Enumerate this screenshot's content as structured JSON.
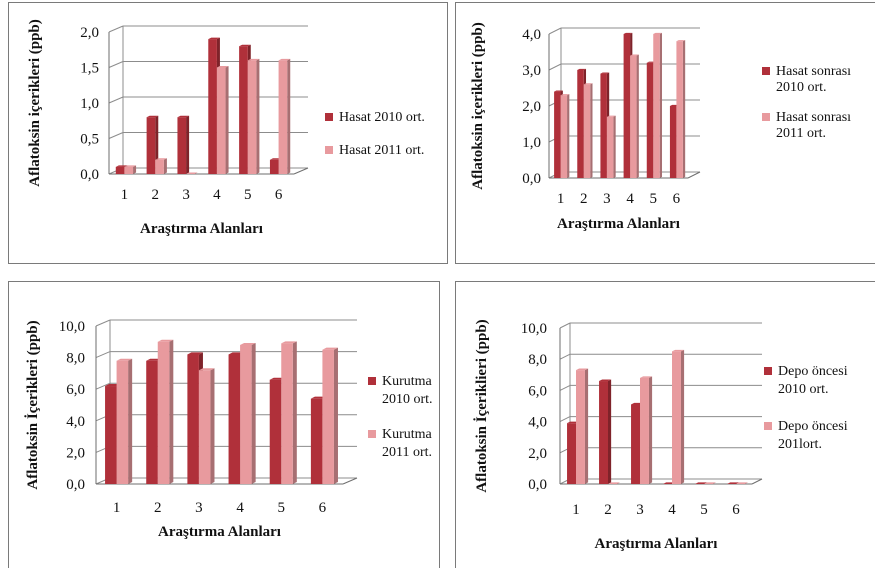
{
  "colors": {
    "series_2010": "#b0303a",
    "series_2011": "#e89a9e",
    "grid": "#8c8c8c",
    "axis": "#6e6e6e"
  },
  "chart_data": [
    {
      "type": "bar",
      "categories": [
        "1",
        "2",
        "3",
        "4",
        "5",
        "6"
      ],
      "series": [
        {
          "name": "Hasat  2010 ort.",
          "values": [
            0.1,
            0.8,
            0.8,
            1.9,
            1.8,
            0.2
          ]
        },
        {
          "name": "Hasat 2011 ort.",
          "values": [
            0.1,
            0.2,
            0.0,
            1.5,
            1.6,
            1.6
          ]
        }
      ],
      "ylabel": "Aflatoksin içerikleri (ppb)",
      "xlabel": "Araştırma Alanları",
      "ylim": [
        0,
        2
      ],
      "yticks": [
        "0,0",
        "0,5",
        "1,0",
        "1,5",
        "2,0"
      ],
      "legend_lines": [
        [
          "Hasat  2010 ort."
        ],
        [
          "Hasat 2011 ort."
        ]
      ],
      "legend_position": "right",
      "grid": true
    },
    {
      "type": "bar",
      "categories": [
        "1",
        "2",
        "3",
        "4",
        "5",
        "6"
      ],
      "series": [
        {
          "name": "Hasat sonrası 2010 ort.",
          "values": [
            2.4,
            3.0,
            2.9,
            4.0,
            3.2,
            2.0
          ]
        },
        {
          "name": "Hasat sonrası 2011 ort.",
          "values": [
            2.3,
            2.6,
            1.7,
            3.4,
            4.0,
            3.8
          ]
        }
      ],
      "ylabel": "Aflatoksin içerikleri (ppb)",
      "xlabel": "Araştırma Alanları",
      "ylim": [
        0,
        4
      ],
      "yticks": [
        "0,0",
        "1,0",
        "2,0",
        "3,0",
        "4,0"
      ],
      "legend_lines": [
        [
          "Hasat sonrası",
          "2010 ort."
        ],
        [
          "Hasat sonrası",
          "2011 ort."
        ]
      ],
      "legend_position": "right",
      "grid": true
    },
    {
      "type": "bar",
      "categories": [
        "1",
        "2",
        "3",
        "4",
        "5",
        "6"
      ],
      "series": [
        {
          "name": "Kurutma 2010 ort.",
          "values": [
            6.2,
            7.8,
            8.2,
            8.2,
            6.6,
            5.4
          ]
        },
        {
          "name": "Kurutma 2011 ort.",
          "values": [
            7.8,
            9.0,
            7.2,
            8.8,
            8.9,
            8.5
          ]
        }
      ],
      "ylabel": "Aflatoksin İçerikleri (ppb)",
      "xlabel": "Araştırma   Alanları",
      "ylim": [
        0,
        10
      ],
      "yticks": [
        "0,0",
        "2,0",
        "4,0",
        "6,0",
        "8,0",
        "10,0"
      ],
      "legend_lines": [
        [
          "Kurutma",
          "2010 ort."
        ],
        [
          "Kurutma",
          "2011 ort."
        ]
      ],
      "legend_position": "right",
      "grid": true
    },
    {
      "type": "bar",
      "categories": [
        "1",
        "2",
        "3",
        "4",
        "5",
        "6"
      ],
      "series": [
        {
          "name": "Depo öncesi 2010 ort.",
          "values": [
            3.9,
            6.6,
            5.1,
            0.0,
            0.0,
            0.0
          ]
        },
        {
          "name": "Depo öncesi 201lort.",
          "values": [
            7.3,
            0.0,
            6.8,
            8.5,
            0.0,
            0.0
          ]
        }
      ],
      "ylabel": "Aflatoksin İçeriklieri (ppb)",
      "xlabel": "Araştırma Alanları",
      "ylim": [
        0,
        10
      ],
      "yticks": [
        "0,0",
        "2,0",
        "4,0",
        "6,0",
        "8,0",
        "10,0"
      ],
      "legend_lines": [
        [
          "Depo öncesi",
          "2010 ort."
        ],
        [
          "Depo öncesi",
          "201lort."
        ]
      ],
      "legend_position": "right",
      "grid": true
    }
  ]
}
